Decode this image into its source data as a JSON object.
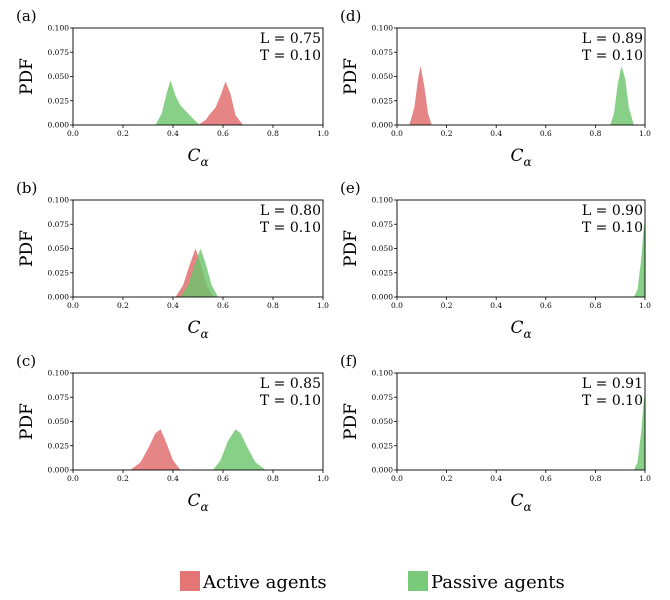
{
  "chart_data": [
    {
      "type": "area",
      "panel_label": "(a)",
      "annotation": [
        "L = 0.75",
        "T = 0.10"
      ],
      "xlabel": "C_α",
      "ylabel": "PDF",
      "xlim": [
        0,
        1
      ],
      "ylim": [
        0,
        0.1
      ],
      "xticks": [
        "0.0",
        "0.2",
        "0.4",
        "0.6",
        "0.8",
        "1.0"
      ],
      "yticks": [
        "0.000",
        "0.025",
        "0.050",
        "0.075",
        "0.100"
      ],
      "series": [
        {
          "color": "#e06666",
          "points": [
            [
              0.5,
              0
            ],
            [
              0.53,
              0.005
            ],
            [
              0.55,
              0.012
            ],
            [
              0.57,
              0.018
            ],
            [
              0.59,
              0.03
            ],
            [
              0.61,
              0.045
            ],
            [
              0.63,
              0.032
            ],
            [
              0.65,
              0.01
            ],
            [
              0.68,
              0
            ]
          ]
        },
        {
          "color": "#6ac46a",
          "points": [
            [
              0.33,
              0
            ],
            [
              0.355,
              0.012
            ],
            [
              0.375,
              0.033
            ],
            [
              0.39,
              0.046
            ],
            [
              0.41,
              0.03
            ],
            [
              0.43,
              0.02
            ],
            [
              0.46,
              0.012
            ],
            [
              0.49,
              0.004
            ],
            [
              0.51,
              0
            ]
          ]
        }
      ]
    },
    {
      "type": "area",
      "panel_label": "(b)",
      "annotation": [
        "L = 0.80",
        "T = 0.10"
      ],
      "xlabel": "C_α",
      "ylabel": "PDF",
      "xlim": [
        0,
        1
      ],
      "ylim": [
        0,
        0.1
      ],
      "xticks": [
        "0.0",
        "0.2",
        "0.4",
        "0.6",
        "0.8",
        "1.0"
      ],
      "yticks": [
        "0.000",
        "0.025",
        "0.050",
        "0.075",
        "0.100"
      ],
      "series": [
        {
          "color": "#e06666",
          "points": [
            [
              0.41,
              0
            ],
            [
              0.44,
              0.012
            ],
            [
              0.465,
              0.032
            ],
            [
              0.49,
              0.05
            ],
            [
              0.51,
              0.035
            ],
            [
              0.535,
              0.012
            ],
            [
              0.56,
              0
            ]
          ]
        },
        {
          "color": "#6ac46a",
          "points": [
            [
              0.43,
              0
            ],
            [
              0.46,
              0.012
            ],
            [
              0.485,
              0.032
            ],
            [
              0.51,
              0.05
            ],
            [
              0.53,
              0.035
            ],
            [
              0.555,
              0.012
            ],
            [
              0.58,
              0
            ]
          ]
        }
      ]
    },
    {
      "type": "area",
      "panel_label": "(c)",
      "annotation": [
        "L = 0.85",
        "T = 0.10"
      ],
      "xlabel": "C_α",
      "ylabel": "PDF",
      "xlim": [
        0,
        1
      ],
      "ylim": [
        0,
        0.1
      ],
      "xticks": [
        "0.0",
        "0.2",
        "0.4",
        "0.6",
        "0.8",
        "1.0"
      ],
      "yticks": [
        "0.000",
        "0.025",
        "0.050",
        "0.075",
        "0.100"
      ],
      "series": [
        {
          "color": "#e06666",
          "points": [
            [
              0.23,
              0
            ],
            [
              0.27,
              0.008
            ],
            [
              0.3,
              0.022
            ],
            [
              0.33,
              0.038
            ],
            [
              0.35,
              0.042
            ],
            [
              0.37,
              0.03
            ],
            [
              0.4,
              0.01
            ],
            [
              0.43,
              0
            ]
          ]
        },
        {
          "color": "#6ac46a",
          "points": [
            [
              0.56,
              0
            ],
            [
              0.59,
              0.01
            ],
            [
              0.62,
              0.03
            ],
            [
              0.65,
              0.042
            ],
            [
              0.67,
              0.038
            ],
            [
              0.7,
              0.022
            ],
            [
              0.73,
              0.008
            ],
            [
              0.77,
              0
            ]
          ]
        }
      ]
    },
    {
      "type": "area",
      "panel_label": "(d)",
      "annotation": [
        "L = 0.89",
        "T = 0.10"
      ],
      "xlabel": "C_α",
      "ylabel": "PDF",
      "xlim": [
        0,
        1
      ],
      "ylim": [
        0,
        0.1
      ],
      "xticks": [
        "0.0",
        "0.2",
        "0.4",
        "0.6",
        "0.8",
        "1.0"
      ],
      "yticks": [
        "0.000",
        "0.025",
        "0.050",
        "0.075",
        "0.100"
      ],
      "series": [
        {
          "color": "#e06666",
          "points": [
            [
              0.05,
              0
            ],
            [
              0.07,
              0.018
            ],
            [
              0.085,
              0.048
            ],
            [
              0.095,
              0.061
            ],
            [
              0.11,
              0.04
            ],
            [
              0.125,
              0.012
            ],
            [
              0.14,
              0
            ]
          ]
        },
        {
          "color": "#6ac46a",
          "points": [
            [
              0.86,
              0
            ],
            [
              0.875,
              0.012
            ],
            [
              0.89,
              0.042
            ],
            [
              0.905,
              0.061
            ],
            [
              0.92,
              0.048
            ],
            [
              0.935,
              0.018
            ],
            [
              0.955,
              0
            ]
          ]
        }
      ]
    },
    {
      "type": "area",
      "panel_label": "(e)",
      "annotation": [
        "L = 0.90",
        "T = 0.10"
      ],
      "xlabel": "C_α",
      "ylabel": "PDF",
      "xlim": [
        0,
        1
      ],
      "ylim": [
        0,
        0.1
      ],
      "xticks": [
        "0.0",
        "0.2",
        "0.4",
        "0.6",
        "0.8",
        "1.0"
      ],
      "yticks": [
        "0.000",
        "0.025",
        "0.050",
        "0.075",
        "0.100"
      ],
      "series": [
        {
          "color": "#6ac46a",
          "points": [
            [
              0.955,
              0
            ],
            [
              0.97,
              0.008
            ],
            [
              0.985,
              0.04
            ],
            [
              0.995,
              0.072
            ],
            [
              1.0,
              0.078
            ],
            [
              1.0,
              0
            ]
          ]
        }
      ]
    },
    {
      "type": "area",
      "panel_label": "(f)",
      "annotation": [
        "L = 0.91",
        "T = 0.10"
      ],
      "xlabel": "C_α",
      "ylabel": "PDF",
      "xlim": [
        0,
        1
      ],
      "ylim": [
        0,
        0.1
      ],
      "xticks": [
        "0.0",
        "0.2",
        "0.4",
        "0.6",
        "0.8",
        "1.0"
      ],
      "yticks": [
        "0.000",
        "0.025",
        "0.050",
        "0.075",
        "0.100"
      ],
      "series": [
        {
          "color": "#6ac46a",
          "points": [
            [
              0.955,
              0
            ],
            [
              0.97,
              0.008
            ],
            [
              0.985,
              0.04
            ],
            [
              0.995,
              0.072
            ],
            [
              1.0,
              0.078
            ],
            [
              1.0,
              0
            ]
          ]
        }
      ]
    }
  ],
  "legend": {
    "placement": "bottom",
    "items": [
      {
        "label": "Active agents",
        "color": "#e06666"
      },
      {
        "label": "Passive agents",
        "color": "#6ac46a"
      }
    ]
  }
}
